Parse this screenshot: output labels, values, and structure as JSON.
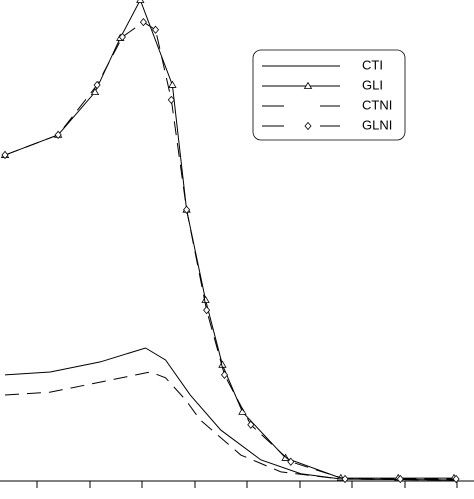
{
  "chart_data": {
    "type": "line",
    "xlim": [
      0.39,
      9.3
    ],
    "ylim": [
      0,
      10
    ],
    "legend": "upper right",
    "series": [
      {
        "name": "CTI",
        "color": "#000000",
        "dash": false,
        "marker": null,
        "x": [
          0.39,
          1.25,
          2.2,
          3.06,
          3.44,
          3.91,
          4.49,
          5.25,
          6.01,
          6.77,
          8.96
        ],
        "values": [
          2.19,
          2.25,
          2.46,
          2.75,
          2.5,
          1.77,
          1.04,
          0.42,
          0.13,
          0.02,
          0
        ]
      },
      {
        "name": "GLI",
        "color": "#000000",
        "dash": false,
        "marker": "triangle",
        "x": [
          0.39,
          1.4,
          2.1,
          2.58,
          2.96,
          3.57,
          3.84,
          4.2,
          4.52,
          4.9,
          5.72,
          6.77,
          7.86,
          8.92
        ],
        "values": [
          6.77,
          7.19,
          8.08,
          9.21,
          10,
          8.23,
          5.63,
          3.75,
          2.4,
          1.42,
          0.46,
          0.04,
          0.04,
          0.04
        ]
      },
      {
        "name": "CTNI",
        "color": "#000000",
        "dash": true,
        "marker": null,
        "x": [
          0.39,
          1.25,
          2.2,
          3.15,
          3.44,
          3.82,
          4.1,
          4.87,
          5.63,
          6.77,
          8.96
        ],
        "values": [
          1.77,
          1.83,
          2.04,
          2.25,
          2.13,
          1.67,
          1.25,
          0.52,
          0.17,
          0.02,
          0
        ]
      },
      {
        "name": "GLNI",
        "color": "#000000",
        "dash": true,
        "marker": "diamond",
        "x": [
          0.39,
          1.4,
          2.14,
          2.62,
          3.02,
          3.25,
          3.55,
          3.84,
          4.22,
          4.56,
          5.06,
          5.82,
          6.85,
          7.9,
          8.96
        ],
        "values": [
          6.77,
          7.19,
          8.23,
          9.23,
          9.54,
          9.38,
          7.92,
          5.63,
          3.54,
          2.19,
          1.15,
          0.38,
          0.02,
          0.02,
          0.02
        ]
      }
    ]
  }
}
